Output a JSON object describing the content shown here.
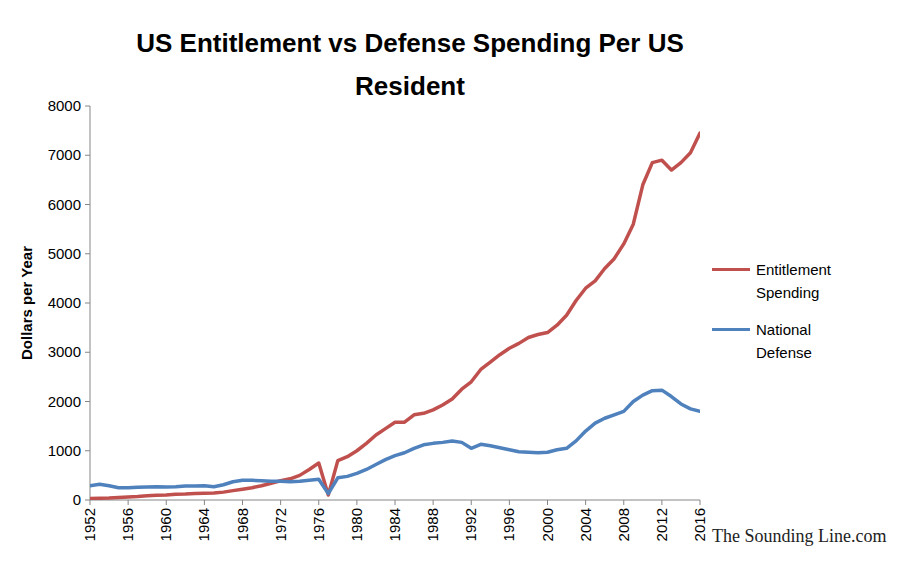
{
  "chart_data": {
    "type": "line",
    "title": "US Entitlement vs Defense Spending Per US Resident",
    "y_label": "Dollars per Year",
    "annotation": "The Sounding Line.com",
    "x": [
      1952,
      1953,
      1954,
      1955,
      1956,
      1957,
      1958,
      1959,
      1960,
      1961,
      1962,
      1963,
      1964,
      1965,
      1966,
      1967,
      1968,
      1969,
      1970,
      1971,
      1972,
      1973,
      1974,
      1975,
      1976,
      1977,
      1978,
      1979,
      1980,
      1981,
      1982,
      1983,
      1984,
      1985,
      1986,
      1987,
      1988,
      1989,
      1990,
      1991,
      1992,
      1993,
      1994,
      1995,
      1996,
      1997,
      1998,
      1999,
      2000,
      2001,
      2002,
      2003,
      2004,
      2005,
      2006,
      2007,
      2008,
      2009,
      2010,
      2011,
      2012,
      2013,
      2014,
      2015,
      2016
    ],
    "series": [
      {
        "name": "Entitlement Spending",
        "color": "#c0504d",
        "values": [
          30,
          35,
          40,
          50,
          60,
          70,
          85,
          95,
          100,
          115,
          120,
          130,
          135,
          140,
          160,
          190,
          220,
          250,
          290,
          340,
          390,
          430,
          500,
          620,
          750,
          100,
          800,
          880,
          1000,
          1150,
          1320,
          1450,
          1580,
          1580,
          1730,
          1760,
          1830,
          1930,
          2050,
          2250,
          2400,
          2650,
          2800,
          2950,
          3080,
          3180,
          3300,
          3360,
          3400,
          3550,
          3750,
          4050,
          4300,
          4450,
          4700,
          4900,
          5200,
          5600,
          6400,
          6850,
          6900,
          6700,
          6850,
          7050,
          7450
        ]
      },
      {
        "name": "National Defense",
        "color": "#4f81bd",
        "values": [
          290,
          320,
          290,
          250,
          250,
          260,
          265,
          270,
          265,
          270,
          285,
          285,
          290,
          270,
          310,
          370,
          400,
          400,
          390,
          380,
          380,
          370,
          380,
          400,
          420,
          130,
          450,
          480,
          540,
          620,
          720,
          820,
          900,
          960,
          1050,
          1120,
          1150,
          1170,
          1200,
          1170,
          1050,
          1130,
          1100,
          1060,
          1020,
          980,
          970,
          960,
          970,
          1020,
          1050,
          1200,
          1400,
          1560,
          1660,
          1730,
          1800,
          2000,
          2130,
          2220,
          2230,
          2100,
          1950,
          1850,
          1800
        ]
      }
    ],
    "xlim": [
      1952,
      2016
    ],
    "xticks": [
      1952,
      1956,
      1960,
      1964,
      1968,
      1972,
      1976,
      1980,
      1984,
      1988,
      1992,
      1996,
      2000,
      2004,
      2008,
      2012,
      2016
    ],
    "ylim": [
      0,
      8000
    ],
    "yticks": [
      0,
      1000,
      2000,
      3000,
      4000,
      5000,
      6000,
      7000,
      8000
    ],
    "grid": false,
    "legend": "right"
  }
}
